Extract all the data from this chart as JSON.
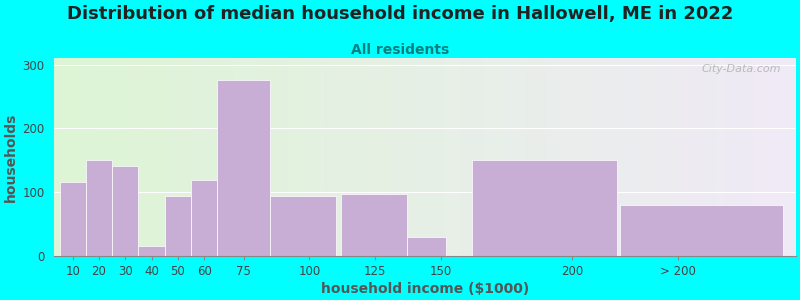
{
  "title": "Distribution of median household income in Hallowell, ME in 2022",
  "subtitle": "All residents",
  "xlabel": "household income ($1000)",
  "ylabel": "households",
  "background_color": "#00FFFF",
  "bar_color": "#c8aed4",
  "categories": [
    "10",
    "20",
    "30",
    "40",
    "50",
    "60",
    "75",
    "100",
    "125",
    "150",
    "200",
    "> 200"
  ],
  "values": [
    115,
    150,
    140,
    15,
    93,
    118,
    275,
    93,
    97,
    30,
    150,
    80
  ],
  "bar_lefts": [
    5,
    15,
    25,
    35,
    45,
    55,
    65,
    85,
    112,
    137,
    162,
    218
  ],
  "bar_widths": [
    10,
    10,
    10,
    10,
    10,
    10,
    20,
    25,
    25,
    15,
    55,
    62
  ],
  "tick_positions": [
    10,
    20,
    30,
    40,
    50,
    60,
    75,
    100,
    125,
    150,
    200,
    240
  ],
  "xlim": [
    3,
    285
  ],
  "ylim": [
    0,
    310
  ],
  "yticks": [
    0,
    100,
    200,
    300
  ],
  "title_fontsize": 13,
  "subtitle_fontsize": 10,
  "axis_label_fontsize": 10,
  "tick_fontsize": 8.5,
  "watermark_text": "City-Data.com"
}
